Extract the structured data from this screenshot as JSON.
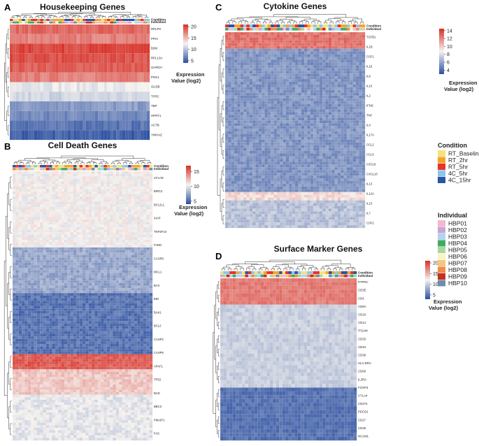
{
  "panels": {
    "A": {
      "label": "A",
      "title": "Housekeeping Genes"
    },
    "B": {
      "label": "B",
      "title": "Cell Death Genes"
    },
    "C": {
      "label": "C",
      "title": "Cytokine Genes"
    },
    "D": {
      "label": "D",
      "title": "Surface Marker Genes"
    }
  },
  "annotation_row_labels": {
    "condition": "Condition",
    "individual": "Individual"
  },
  "colorbar_title": {
    "line1": "Expression",
    "line2": "Value (log2)"
  },
  "colors": {
    "low": "#2b4fa0",
    "mid": "#f5f3f0",
    "high": "#d73027"
  },
  "legend": {
    "condition_title": "Condition",
    "conditions": [
      {
        "name": "RT_Baseline",
        "color": "#f6e27a"
      },
      {
        "name": "RT_2hr",
        "color": "#f4a52a"
      },
      {
        "name": "RT_5hr",
        "color": "#e8322c"
      },
      {
        "name": "4C_5hr",
        "color": "#8fc5ea"
      },
      {
        "name": "4C_15hr",
        "color": "#2855a5"
      }
    ],
    "individual_title": "Individual",
    "individuals": [
      {
        "name": "HBP01",
        "color": "#f4b8c8"
      },
      {
        "name": "HBP02",
        "color": "#c8a6d6"
      },
      {
        "name": "HBP03",
        "color": "#b3d4ee"
      },
      {
        "name": "HBP04",
        "color": "#43aa62"
      },
      {
        "name": "HBP05",
        "color": "#a7d89e"
      },
      {
        "name": "HBP06",
        "color": "#faf2c8"
      },
      {
        "name": "HBP07",
        "color": "#f7c47e"
      },
      {
        "name": "HBP08",
        "color": "#ee8d4a"
      },
      {
        "name": "HBP09",
        "color": "#c53025"
      },
      {
        "name": "HBP10",
        "color": "#6d8ea8"
      }
    ]
  },
  "chart_data": [
    {
      "type": "heatmap",
      "title": "Housekeeping Genes",
      "colorbar": {
        "min": 4,
        "max": 21,
        "ticks": [
          5,
          10,
          15,
          20
        ]
      },
      "rows": [
        "RPLP0",
        "PPIA",
        "B2M",
        "RPL13A",
        "GAPDH",
        "PGK1",
        "GUSB",
        "TFRC",
        "TBP",
        "HPRT1",
        "ACTB",
        "YWHAZ"
      ],
      "row_means": [
        18.5,
        17.5,
        20,
        19.5,
        19,
        17.5,
        12,
        11,
        8,
        7,
        6,
        5
      ]
    },
    {
      "type": "heatmap",
      "title": "Cell Death Genes",
      "colorbar": {
        "min": 4,
        "max": 17,
        "ticks": [
          5,
          10,
          15
        ]
      },
      "rows": [
        "CFLAR",
        "BIRC2",
        "BCL2L1",
        "XIAP",
        "TNFSF10",
        "FADD",
        "CASP8",
        "MCL1",
        "BAX",
        "BID",
        "BAK1",
        "BCL2",
        "CASP3",
        "CASP9",
        "APAF1",
        "TP53",
        "BAD",
        "BBC3",
        "PMAIP1",
        "FAS"
      ],
      "row_blocks": [
        {
          "rows": 30,
          "mean": 10.5
        },
        {
          "rows": 18,
          "mean": 7.5
        },
        {
          "rows": 24,
          "mean": 5.5
        },
        {
          "rows": 6,
          "mean": 15.5
        },
        {
          "rows": 10,
          "mean": 12
        },
        {
          "rows": 18,
          "mean": 10
        }
      ]
    },
    {
      "type": "heatmap",
      "title": "Cytokine Genes",
      "colorbar": {
        "min": 3,
        "max": 14.5,
        "ticks": [
          4,
          6,
          8,
          10,
          12,
          14
        ]
      },
      "rows": [
        "TGFB1",
        "IL1B",
        "CSF1",
        "IL18",
        "IL6",
        "IL10",
        "IL2",
        "IFNG",
        "TNF",
        "IL4",
        "IL17A",
        "CCL2",
        "CCL5",
        "CXCL8",
        "CXCL10",
        "IL13",
        "IL12A",
        "IL15",
        "IL7",
        "CSF2"
      ],
      "row_blocks": [
        {
          "rows": 6,
          "mean": 12.5
        },
        {
          "rows": 52,
          "mean": 5.5
        },
        {
          "rows": 3,
          "mean": 9.5
        },
        {
          "rows": 10,
          "mean": 7
        }
      ]
    },
    {
      "type": "heatmap",
      "title": "Surface Marker Genes",
      "colorbar": {
        "min": 3,
        "max": 21,
        "ticks": [
          5,
          10,
          15,
          20
        ]
      },
      "rows": [
        "PTPRC",
        "CD3E",
        "CD4",
        "CD8A",
        "CD19",
        "CD14",
        "ITGAM",
        "CD33",
        "CD34",
        "CD38",
        "HLA-DRA",
        "CD69",
        "IL2RA",
        "FOXP3",
        "CTLA4",
        "CD274",
        "PDCD1",
        "CD27",
        "CD28",
        "NCAM1"
      ],
      "row_blocks": [
        {
          "rows": 7,
          "mean": 17.5
        },
        {
          "rows": 22,
          "mean": 10
        },
        {
          "rows": 14,
          "mean": 5
        }
      ]
    }
  ]
}
